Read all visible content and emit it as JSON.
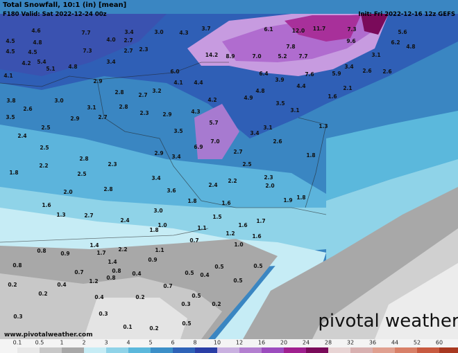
{
  "header": {
    "title": "Total Snowfall, 10:1 (in) [mean]",
    "valid": "F180 Valid: Sat 2022-12-24 00z",
    "init": "Init: Fri 2022-12-16 12z GEFS"
  },
  "footer": {
    "url": "www.pivotalweather.com",
    "logo": "pivotal weather"
  },
  "colorbar": {
    "ticks": [
      "0.1",
      "0.5",
      "1",
      "2",
      "3",
      "4",
      "5",
      "6",
      "8",
      "10",
      "12",
      "16",
      "20",
      "24",
      "28",
      "32",
      "36",
      "44",
      "52",
      "60"
    ],
    "colors": [
      "#e8e8e8",
      "#c8c8c8",
      "#a8a8a8",
      "#c6ecf5",
      "#8fd3e8",
      "#5bb8dc",
      "#3c8fc8",
      "#2f63b8",
      "#2a3ea6",
      "#c9b0e0",
      "#b37fd0",
      "#9c4cbe",
      "#a0208f",
      "#7a0a5a",
      "#e8d4d4",
      "#d8b0b0",
      "#e0a090",
      "#d88068",
      "#c85a40",
      "#a83820"
    ]
  },
  "map": {
    "labels": [
      "4.6",
      "7.7",
      "3.4",
      "3.0",
      "4.3",
      "3.7",
      "6.1",
      "12.0",
      "11.7",
      "7.3",
      "5.6",
      "4.5",
      "4.8",
      "4.0",
      "2.7",
      "9.6",
      "6.2",
      "4.8",
      "4.5",
      "4.5",
      "7.3",
      "2.7",
      "2.3",
      "7.8",
      "3.1",
      "14.2",
      "8.9",
      "7.0",
      "5.2",
      "7.7",
      "4.2",
      "5.4",
      "4.8",
      "3.4",
      "2.6",
      "2.6",
      "4.1",
      "5.1",
      "6.0",
      "6.4",
      "7.6",
      "5.9",
      "3.4",
      "2.9",
      "3.2",
      "4.1",
      "4.4",
      "3.9",
      "4.4",
      "2.1",
      "3.8",
      "3.0",
      "2.8",
      "2.7",
      "4.8",
      "4.9",
      "1.6",
      "3.5",
      "2.6",
      "3.1",
      "2.8",
      "4.2",
      "3.5",
      "3.1",
      "4.3",
      "2.3",
      "2.9",
      "5.7",
      "2.5",
      "2.9",
      "2.7",
      "1.3",
      "3.5",
      "3.1",
      "3.4",
      "7.0",
      "6.9",
      "2.4",
      "2.5",
      "2.9",
      "3.4",
      "2.7",
      "2.6",
      "1.8",
      "1.8",
      "2.2",
      "2.8",
      "2.3",
      "2.5",
      "2.5",
      "3.4",
      "3.6",
      "2.4",
      "2.2",
      "2.3",
      "2.0",
      "2.0",
      "2.8",
      "1.6",
      "1.8",
      "1.6",
      "1.8",
      "1.9",
      "1.3",
      "2.7",
      "3.0",
      "1.5",
      "2.4",
      "1.6",
      "1.7",
      "1.0",
      "1.1",
      "1.2",
      "1.8",
      "1.6",
      "0.7",
      "1.4",
      "1.0",
      "0.8",
      "0.9",
      "1.7",
      "2.2",
      "1.1",
      "0.8",
      "0.7",
      "1.4",
      "0.9",
      "0.5",
      "0.5",
      "0.4",
      "0.8",
      "0.4",
      "0.5",
      "0.4",
      "0.2",
      "1.2",
      "0.8",
      "0.7",
      "0.5",
      "0.2",
      "0.4",
      "0.2",
      "0.5",
      "0.3",
      "0.2",
      "0.3",
      "0.3",
      "0.1",
      "0.2",
      "0.5"
    ]
  }
}
